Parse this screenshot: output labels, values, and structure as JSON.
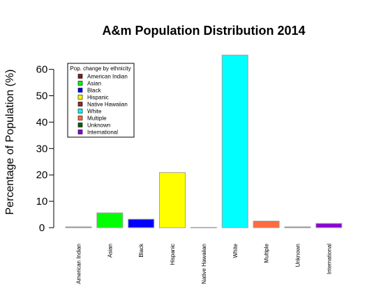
{
  "chart_data": {
    "type": "bar",
    "title": "A&m Population Distribution 2014",
    "xlabel": "",
    "ylabel": "Percentage of Population (%)",
    "ylim": [
      0,
      65.5
    ],
    "yticks": [
      0,
      10,
      20,
      30,
      40,
      50,
      60
    ],
    "categories": [
      "American Indian",
      "Asian",
      "Black",
      "Hispanic",
      "Native Hawaiian",
      "White",
      "Multiple",
      "Unknown",
      "International"
    ],
    "values": [
      0.3,
      5.6,
      3.2,
      20.9,
      0.1,
      65.4,
      2.5,
      0.3,
      1.6
    ],
    "colors": [
      "#8b1a1a",
      "#00ff00",
      "#0000ff",
      "#ffff00",
      "#8b2c2c",
      "#00ffff",
      "#ff6b3d",
      "#006400",
      "#8a00d4"
    ],
    "legend": {
      "title": "Pop. change by ethnicity",
      "position": "top-left",
      "entries": [
        "American Indian",
        "Asian",
        "Black",
        "Hispanic",
        "Native Hawaiian",
        "White",
        "Multiple",
        "Unknown",
        "International"
      ]
    }
  }
}
